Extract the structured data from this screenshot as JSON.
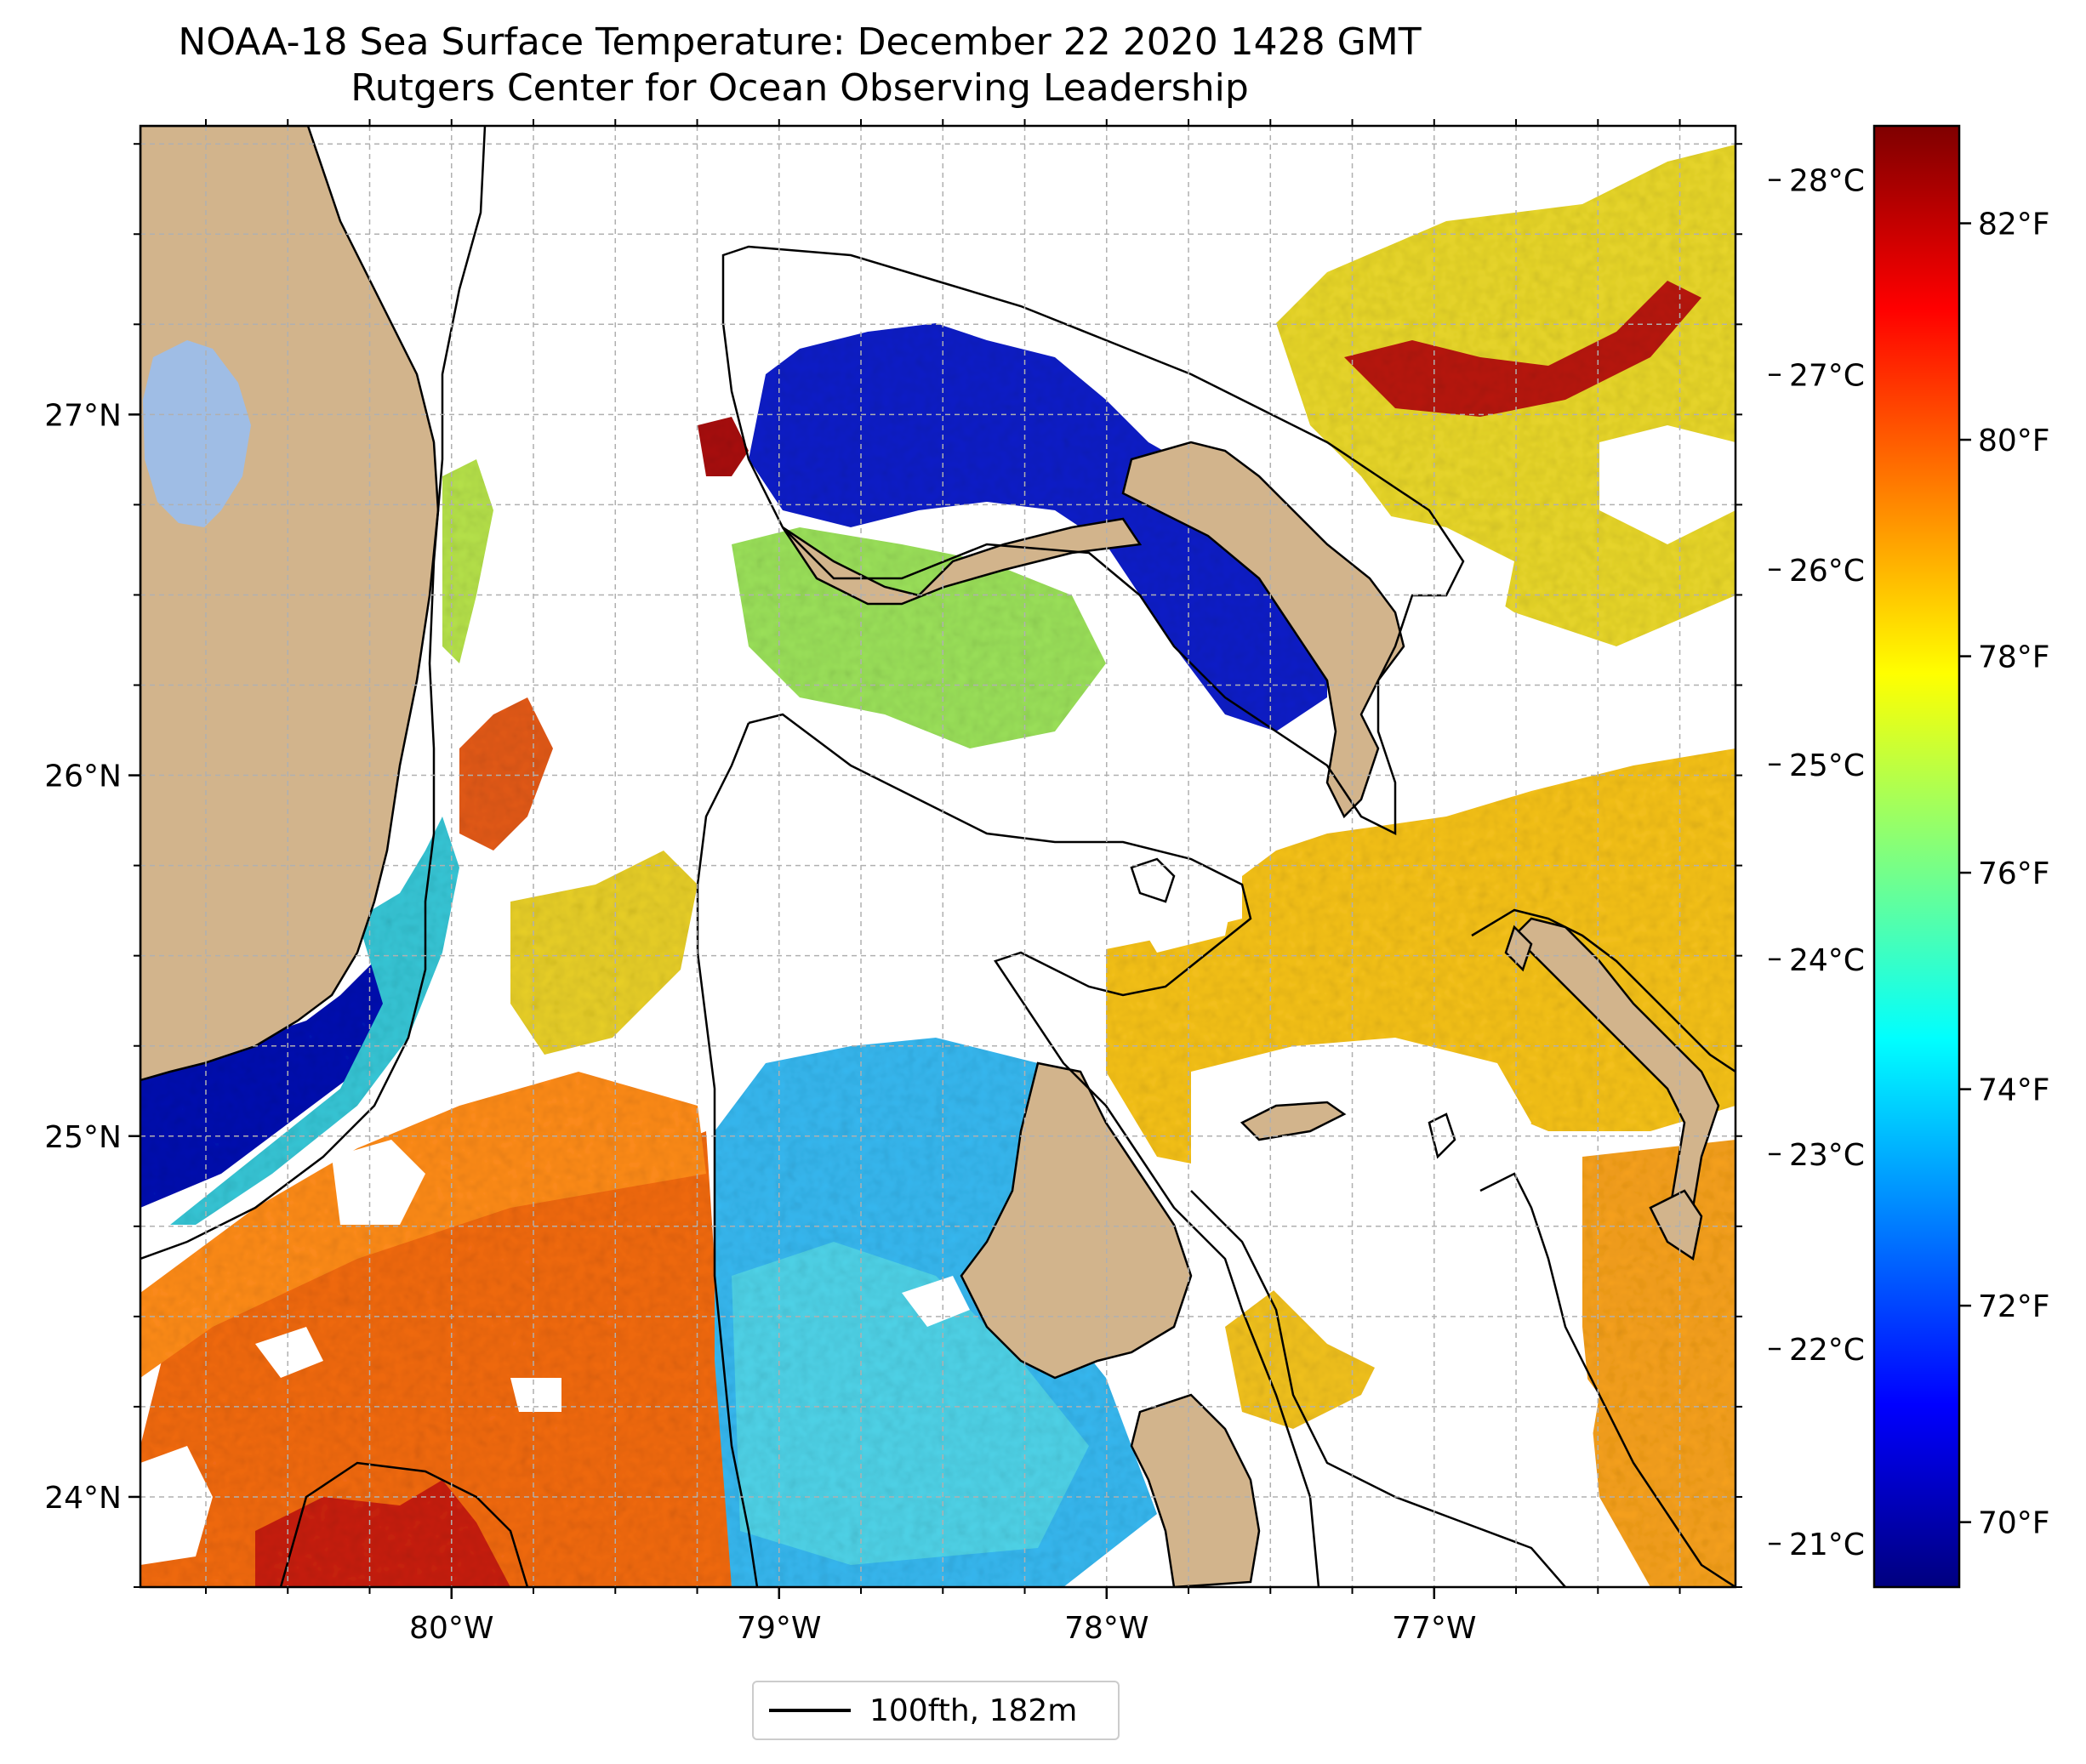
{
  "title": "NOAA-18 Sea Surface Temperature: December 22 2020 1428 GMT",
  "subtitle": "Rutgers Center for Ocean Observing Leadership",
  "map": {
    "lon_ticks": [
      "80°W",
      "79°W",
      "78°W",
      "77°W"
    ],
    "lat_ticks": [
      "27°N",
      "26°N",
      "25°N",
      "24°N"
    ],
    "lon_values": [
      -80,
      -79,
      -78,
      -77
    ],
    "lat_values": [
      27,
      26,
      25,
      24
    ],
    "lon_range": [
      -80.95,
      -76.08
    ],
    "lat_range": [
      23.75,
      27.8
    ],
    "gridlines": true,
    "land_color": "#d2b48c",
    "lake_color": "#9fbde5",
    "missing_color": "#ffffff"
  },
  "colorbar": {
    "celsius_ticks": [
      "21°C",
      "22°C",
      "23°C",
      "24°C",
      "25°C",
      "26°C",
      "27°C",
      "28°C"
    ],
    "fahrenheit_ticks": [
      "70°F",
      "72°F",
      "74°F",
      "76°F",
      "78°F",
      "80°F",
      "82°F"
    ],
    "range_f": [
      69.4,
      82.9
    ],
    "colormap": "jet",
    "jet_stops": [
      "#00007f",
      "#0000ff",
      "#007fff",
      "#00ffff",
      "#7fff7f",
      "#ffff00",
      "#ff7f00",
      "#ff0000",
      "#7f0000"
    ]
  },
  "legend": {
    "label": "100fth, 182m",
    "line_color": "#000000"
  }
}
